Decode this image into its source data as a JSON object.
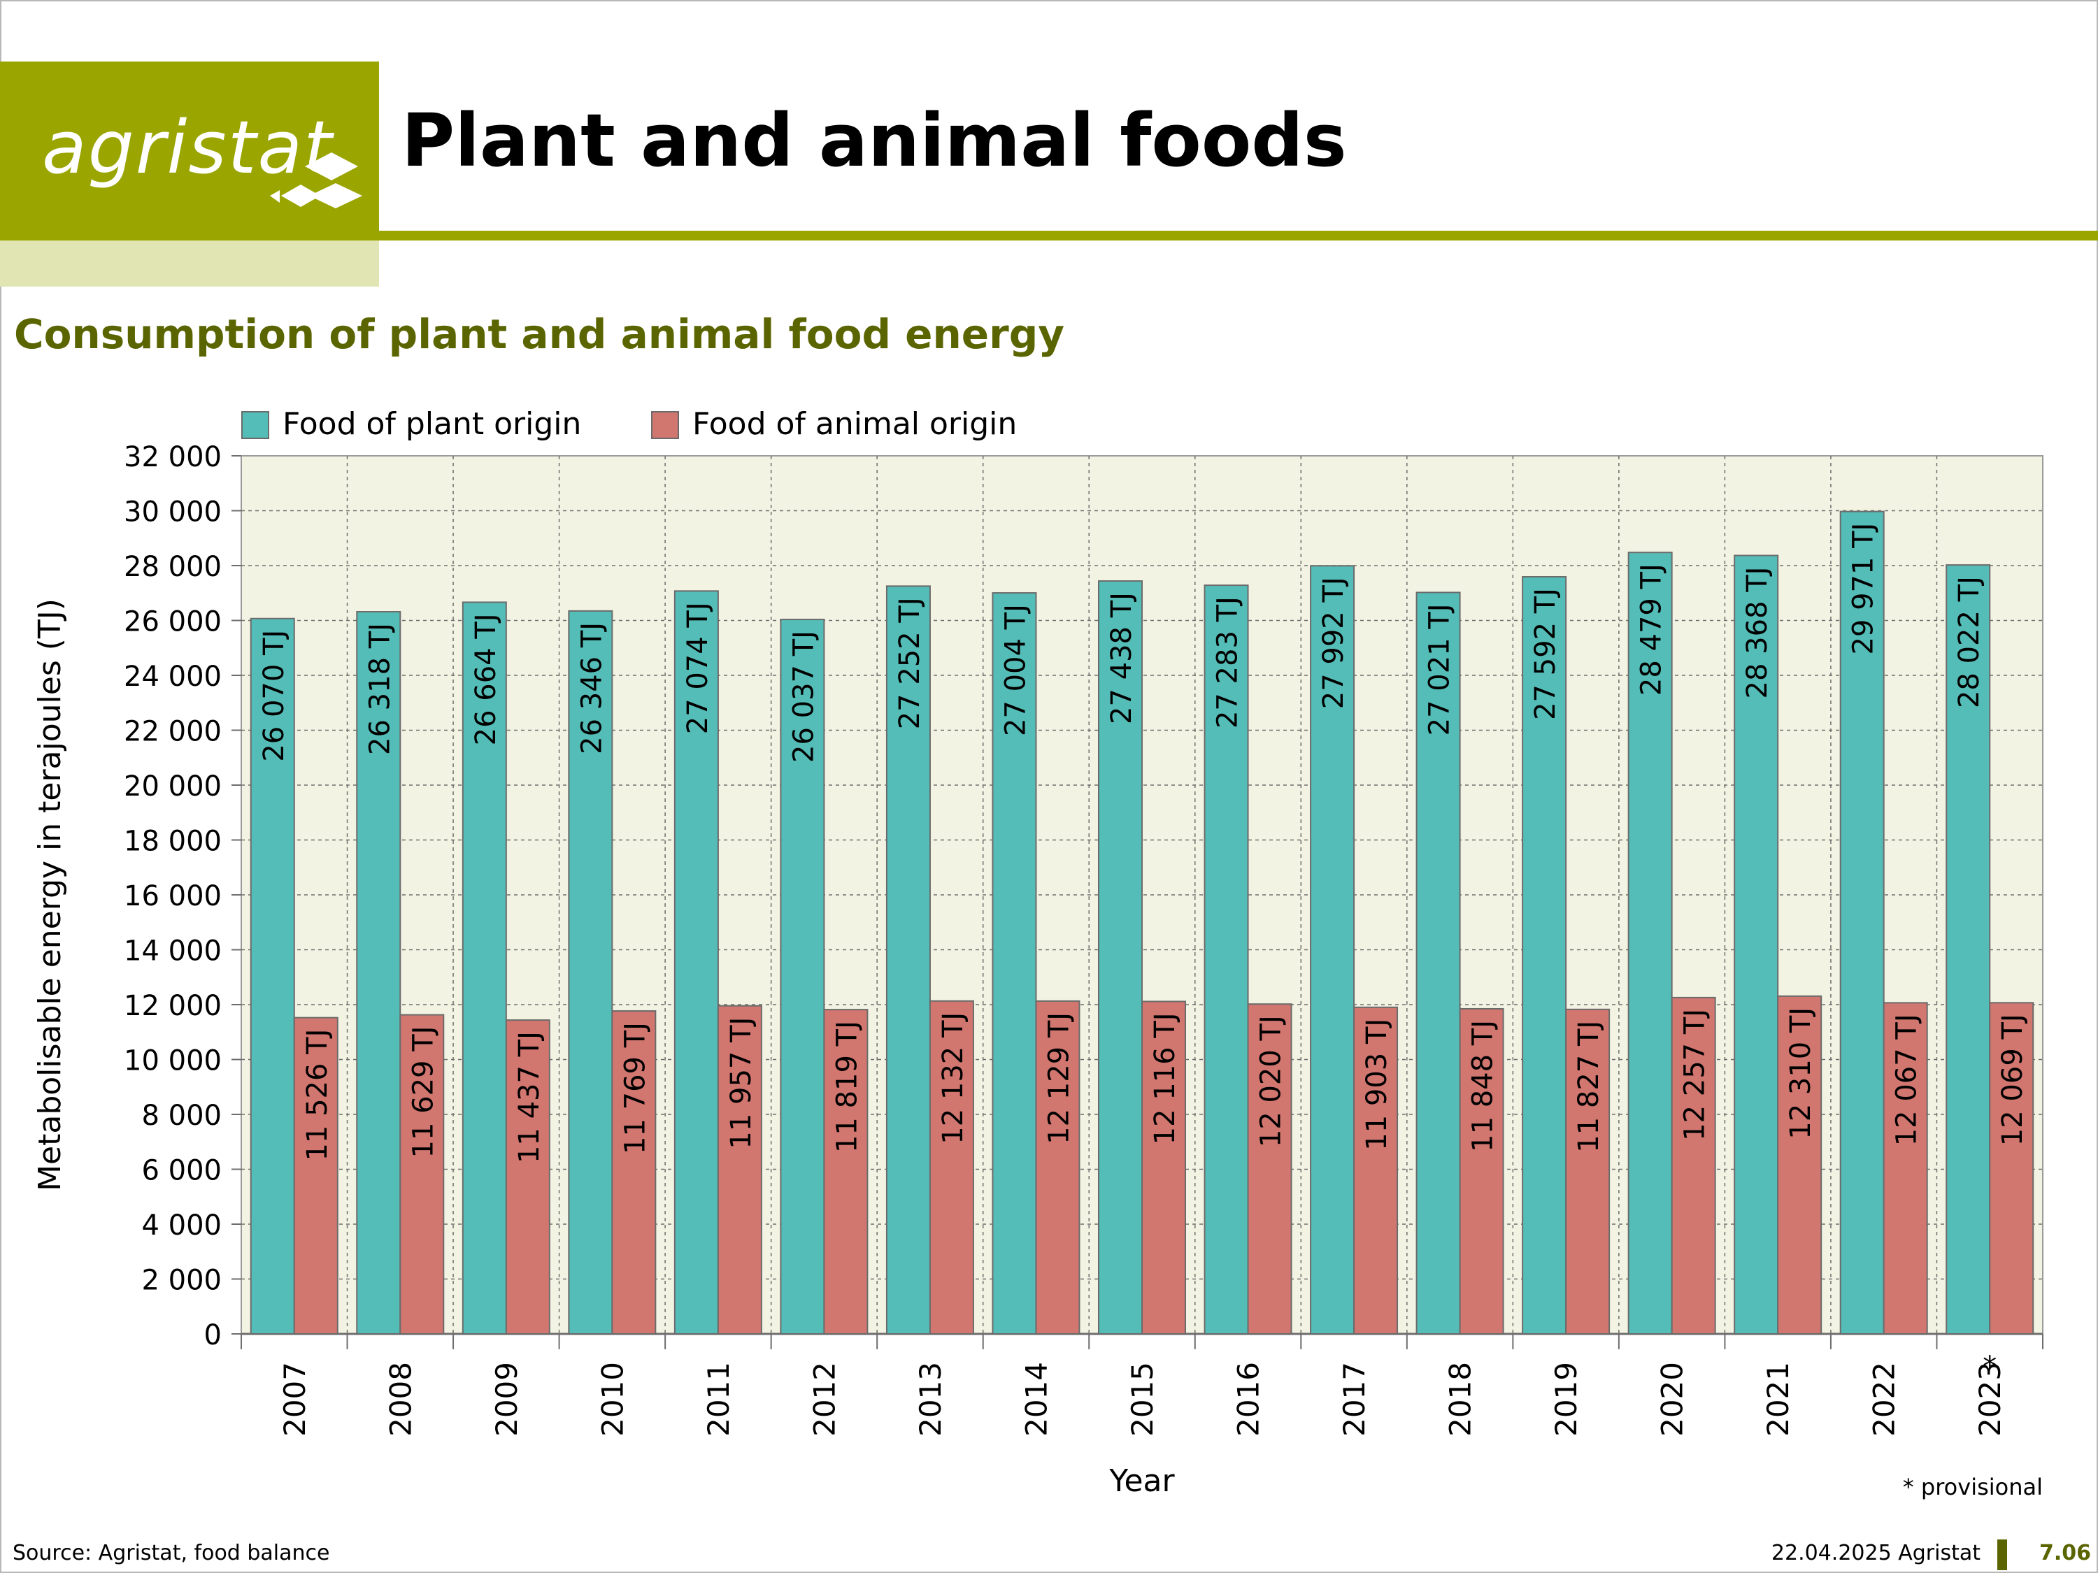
{
  "header": {
    "logo_text": "agristat",
    "page_title": "Plant and animal foods"
  },
  "chart_subtitle": "Consumption of plant and animal food energy",
  "chart_data": {
    "type": "bar",
    "title": "Consumption of plant and animal food energy",
    "xlabel": "Year",
    "ylabel": "Metabolisable energy in terajoules (TJ)",
    "ylim": [
      0,
      32000
    ],
    "ytick_step": 2000,
    "ytick_labels": [
      "0",
      "2 000",
      "4 000",
      "6 000",
      "8 000",
      "10 000",
      "12 000",
      "14 000",
      "16 000",
      "18 000",
      "20 000",
      "22 000",
      "24 000",
      "26 000",
      "28 000",
      "30 000",
      "32 000"
    ],
    "grid": true,
    "legend_position": "top-left",
    "categories": [
      "2007",
      "2008",
      "2009",
      "2010",
      "2011",
      "2012",
      "2013",
      "2014",
      "2015",
      "2016",
      "2017",
      "2018",
      "2019",
      "2020",
      "2021",
      "2022",
      "2023"
    ],
    "category_marks": [
      "",
      "",
      "",
      "",
      "",
      "",
      "",
      "",
      "",
      "",
      "",
      "",
      "",
      "",
      "",
      "",
      "*"
    ],
    "series": [
      {
        "name": "Food of plant origin",
        "color": "#55bdb8",
        "values": [
          26070,
          26318,
          26664,
          26346,
          27074,
          26037,
          27252,
          27004,
          27438,
          27283,
          27992,
          27021,
          27592,
          28479,
          28368,
          29971,
          28022
        ],
        "labels": [
          "26 070 TJ",
          "26 318 TJ",
          "26 664 TJ",
          "26 346 TJ",
          "27 074 TJ",
          "26 037 TJ",
          "27 252 TJ",
          "27 004 TJ",
          "27 438 TJ",
          "27 283 TJ",
          "27 992 TJ",
          "27 021 TJ",
          "27 592 TJ",
          "28 479 TJ",
          "28 368 TJ",
          "29 971 TJ",
          "28 022 TJ"
        ]
      },
      {
        "name": "Food of animal origin",
        "color": "#d27670",
        "values": [
          11526,
          11629,
          11437,
          11769,
          11957,
          11819,
          12132,
          12129,
          12116,
          12020,
          11903,
          11848,
          11827,
          12257,
          12310,
          12067,
          12069
        ],
        "labels": [
          "11 526 TJ",
          "11 629 TJ",
          "11 437 TJ",
          "11 769 TJ",
          "11 957 TJ",
          "11 819 TJ",
          "12 132 TJ",
          "12 129 TJ",
          "12 116 TJ",
          "12 020 TJ",
          "11 903 TJ",
          "11 848 TJ",
          "11 827 TJ",
          "12 257 TJ",
          "12 310 TJ",
          "12 067 TJ",
          "12 069 TJ"
        ]
      }
    ],
    "footnote": "* provisional",
    "plot_background": "#f3f3e3"
  },
  "footer": {
    "source": "Source: Agristat, food balance",
    "date": "22.04.2025 Agristat",
    "page_number": "7.06"
  }
}
